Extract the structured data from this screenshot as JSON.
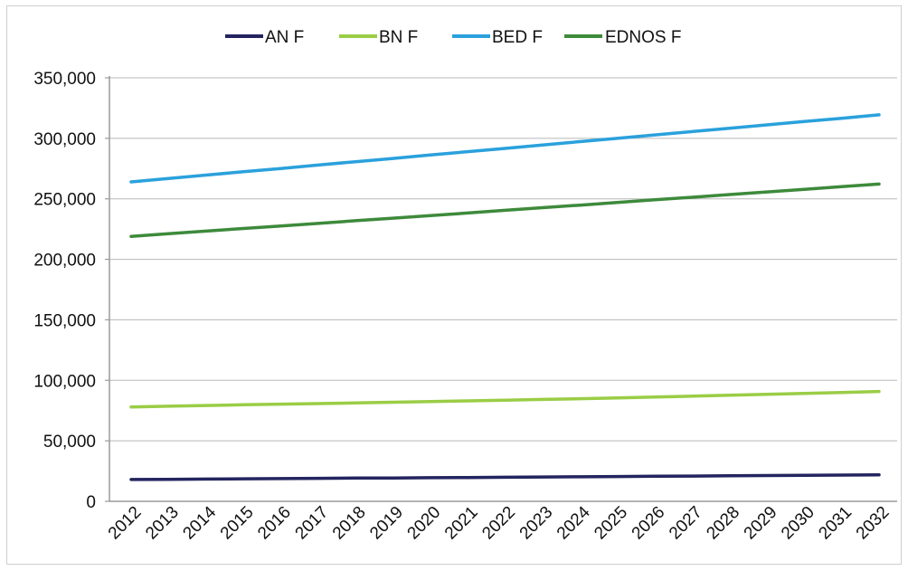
{
  "chart_data": {
    "type": "line",
    "title": "",
    "xlabel": "",
    "ylabel": "",
    "x": [
      "2012",
      "2013",
      "2014",
      "2015",
      "2016",
      "2017",
      "2018",
      "2019",
      "2020",
      "2021",
      "2022",
      "2023",
      "2024",
      "2025",
      "2026",
      "2027",
      "2028",
      "2029",
      "2030",
      "2031",
      "2032"
    ],
    "ylim": [
      0,
      350000
    ],
    "y_ticks": [
      0,
      50000,
      100000,
      150000,
      200000,
      250000,
      300000,
      350000
    ],
    "y_tick_labels": [
      "0",
      "50,000",
      "100,000",
      "150,000",
      "200,000",
      "250,000",
      "300,000",
      "350,000"
    ],
    "grid": "horizontal",
    "legend_position": "top",
    "series": [
      {
        "name": "AN F",
        "color": "#23245f",
        "values": [
          18000,
          18200,
          18400,
          18600,
          18800,
          19000,
          19200,
          19300,
          19500,
          19700,
          19900,
          20100,
          20300,
          20500,
          20700,
          20900,
          21100,
          21300,
          21500,
          21700,
          21900
        ]
      },
      {
        "name": "BN F",
        "color": "#9acd45",
        "values": [
          78000,
          78600,
          79200,
          79800,
          80300,
          80800,
          81300,
          81900,
          82400,
          83000,
          83600,
          84200,
          84800,
          85500,
          86200,
          86900,
          87700,
          88400,
          89200,
          90000,
          90800
        ]
      },
      {
        "name": "BED F",
        "color": "#2aa1dc",
        "values": [
          264000,
          266800,
          269600,
          272400,
          275100,
          277900,
          280700,
          283400,
          286200,
          289000,
          291700,
          294500,
          297300,
          300000,
          302800,
          305600,
          308300,
          311100,
          313900,
          316600,
          319400
        ]
      },
      {
        "name": "EDNOS F",
        "color": "#3d8a3b",
        "values": [
          219000,
          221200,
          223300,
          225500,
          227600,
          229700,
          231900,
          234000,
          236200,
          238300,
          240500,
          242700,
          244800,
          247000,
          249200,
          251300,
          253500,
          255700,
          257800,
          260000,
          262200
        ]
      }
    ]
  }
}
